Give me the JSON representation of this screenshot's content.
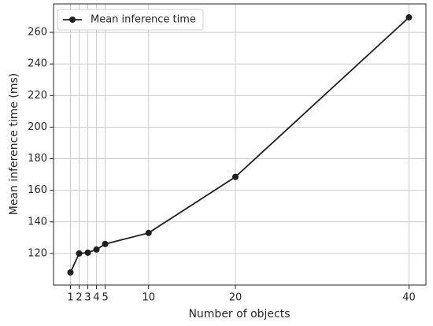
{
  "chart_data": {
    "type": "line",
    "x_label": "Number of objects",
    "y_label": "Mean inference time (ms)",
    "x": [
      1,
      2,
      3,
      4,
      5,
      10,
      20,
      40
    ],
    "series": [
      {
        "name": "Mean inference time",
        "color": "#1f1f1f",
        "values": [
          108,
          120,
          120.5,
          122.5,
          126,
          133,
          168.5,
          269.5
        ]
      }
    ],
    "xlim": [
      -0.95,
      41.95
    ],
    "xticks": [
      1,
      2,
      3,
      4,
      5,
      10,
      20,
      40
    ],
    "ylim": [
      100,
      278
    ],
    "yticks": [
      120,
      140,
      160,
      180,
      200,
      220,
      240,
      260
    ],
    "grid": true,
    "legend": "upper left"
  }
}
